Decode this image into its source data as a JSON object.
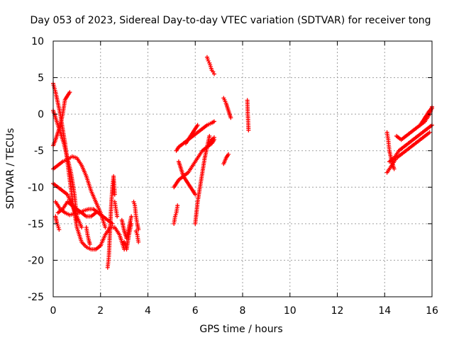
{
  "chart_data": {
    "type": "scatter",
    "title": "Day 053 of 2023, Sidereal Day-to-day VTEC variation (SDTVAR) for receiver tong",
    "xlabel": "GPS time / hours",
    "ylabel": "SDTVAR / TECUs",
    "xlim": [
      0,
      16
    ],
    "ylim": [
      -25,
      10
    ],
    "xticks": [
      "0",
      "2",
      "4",
      "6",
      "8",
      "10",
      "12",
      "14",
      "16"
    ],
    "yticks": [
      "10",
      "5",
      "0",
      "-5",
      "-10",
      "-15",
      "-20",
      "-25"
    ],
    "grid": true,
    "marker": "plus",
    "marker_color": "#ff0000",
    "segments": [
      {
        "x": [
          0.0,
          0.1,
          0.2,
          0.3,
          0.4,
          0.5
        ],
        "y": [
          4.2,
          3.0,
          1.5,
          0.0,
          -2.0,
          -4.0
        ]
      },
      {
        "x": [
          0.5,
          0.6,
          0.7,
          0.8,
          0.9,
          1.0,
          1.2,
          1.4,
          1.6,
          1.8,
          2.0
        ],
        "y": [
          -4.0,
          -6.5,
          -9.0,
          -11.5,
          -13.5,
          -15.5,
          -17.5,
          -18.2,
          -18.5,
          -18.5,
          -18.0
        ]
      },
      {
        "x": [
          2.0,
          2.2,
          2.4,
          2.6,
          2.8,
          3.0
        ],
        "y": [
          -18.0,
          -16.5,
          -15.5,
          -15.5,
          -16.5,
          -18.5
        ]
      },
      {
        "x": [
          0.0,
          0.1,
          0.2,
          0.3,
          0.4,
          0.5,
          0.6,
          0.7
        ],
        "y": [
          -4.3,
          -3.5,
          -2.5,
          -1.5,
          0.0,
          2.0,
          2.5,
          3.0
        ]
      },
      {
        "x": [
          0.0,
          0.2,
          0.4,
          0.6,
          0.8,
          1.0,
          1.2,
          1.4,
          1.6,
          1.8,
          2.0,
          2.2
        ],
        "y": [
          -7.5,
          -7.0,
          -6.5,
          -6.2,
          -5.8,
          -6.0,
          -7.0,
          -8.5,
          -10.5,
          -12.0,
          -13.5,
          -15.5
        ]
      },
      {
        "x": [
          0.0,
          0.15,
          0.3,
          0.45,
          0.6,
          0.75,
          0.9,
          1.0
        ],
        "y": [
          0.5,
          -1.0,
          -2.5,
          -4.0,
          -6.0,
          -8.0,
          -11.0,
          -14.5
        ]
      },
      {
        "x": [
          0.0,
          0.2,
          0.4,
          0.6,
          0.8,
          1.0,
          1.2
        ],
        "y": [
          -9.5,
          -10.0,
          -10.5,
          -11.0,
          -12.5,
          -14.0,
          -15.5
        ]
      },
      {
        "x": [
          0.1,
          0.3,
          0.5,
          0.7,
          0.9,
          1.1,
          1.3,
          1.5,
          1.7,
          1.9,
          2.1,
          2.3,
          2.5
        ],
        "y": [
          -12.0,
          -13.0,
          -13.5,
          -13.8,
          -13.6,
          -13.5,
          -13.2,
          -13.0,
          -13.0,
          -13.5,
          -14.0,
          -14.5,
          -15.0
        ]
      },
      {
        "x": [
          0.2,
          0.4,
          0.6,
          0.8,
          1.0,
          1.2,
          1.4,
          1.6,
          1.8
        ],
        "y": [
          -13.5,
          -13.0,
          -12.0,
          -12.5,
          -13.0,
          -13.5,
          -14.0,
          -14.0,
          -13.5
        ]
      },
      {
        "x": [
          0.1,
          0.15,
          0.2,
          0.25
        ],
        "y": [
          -14.0,
          -14.8,
          -15.3,
          -15.8
        ]
      },
      {
        "x": [
          1.4,
          1.45,
          1.5,
          1.55
        ],
        "y": [
          -15.5,
          -16.5,
          -17.2,
          -17.8
        ]
      },
      {
        "x": [
          2.3,
          2.35,
          2.4,
          2.45,
          2.5,
          2.55,
          2.6
        ],
        "y": [
          -21.0,
          -19.5,
          -16.0,
          -12.5,
          -10.0,
          -8.5,
          -11.0
        ]
      },
      {
        "x": [
          2.6,
          2.65,
          2.7
        ],
        "y": [
          -12.0,
          -13.0,
          -14.0
        ]
      },
      {
        "x": [
          2.9,
          3.0,
          3.1,
          3.2,
          3.3
        ],
        "y": [
          -14.5,
          -16.0,
          -17.0,
          -15.5,
          -14.0
        ]
      },
      {
        "x": [
          3.0,
          3.1,
          3.2,
          3.3
        ],
        "y": [
          -17.5,
          -18.5,
          -16.5,
          -15.0
        ]
      },
      {
        "x": [
          3.4,
          3.45,
          3.5,
          3.55,
          3.6
        ],
        "y": [
          -12.0,
          -12.5,
          -14.0,
          -15.0,
          -15.8
        ]
      },
      {
        "x": [
          3.5,
          3.55,
          3.6
        ],
        "y": [
          -16.0,
          -16.5,
          -17.5
        ]
      },
      {
        "x": [
          5.1,
          5.2,
          5.3,
          5.5,
          5.7,
          5.9,
          6.1,
          6.3,
          6.5,
          6.7,
          6.8
        ],
        "y": [
          -10.0,
          -9.5,
          -9.0,
          -8.5,
          -8.0,
          -7.0,
          -6.0,
          -5.0,
          -4.5,
          -4.0,
          -3.5
        ]
      },
      {
        "x": [
          5.2,
          5.3,
          5.5,
          5.7,
          5.9,
          6.1,
          6.3,
          6.5,
          6.7,
          6.8
        ],
        "y": [
          -5.0,
          -4.5,
          -4.0,
          -3.5,
          -3.0,
          -2.5,
          -2.0,
          -1.5,
          -1.2,
          -1.0
        ]
      },
      {
        "x": [
          5.3,
          5.4,
          5.5,
          5.6,
          5.7,
          5.8,
          5.9,
          6.0
        ],
        "y": [
          -6.5,
          -7.5,
          -8.5,
          -9.0,
          -9.5,
          -10.0,
          -10.5,
          -11.0
        ]
      },
      {
        "x": [
          5.1,
          5.15,
          5.2,
          5.25
        ],
        "y": [
          -15.0,
          -14.0,
          -13.5,
          -12.5
        ]
      },
      {
        "x": [
          5.6,
          5.7,
          5.8,
          5.9,
          6.0,
          6.1
        ],
        "y": [
          -4.0,
          -3.5,
          -3.0,
          -2.5,
          -2.0,
          -1.5
        ]
      },
      {
        "x": [
          6.0,
          6.1,
          6.2,
          6.3,
          6.4,
          6.5,
          6.6
        ],
        "y": [
          -15.0,
          -12.0,
          -10.0,
          -8.0,
          -6.0,
          -4.5,
          -3.0
        ]
      },
      {
        "x": [
          6.5,
          6.55,
          6.6,
          6.65,
          6.7,
          6.75,
          6.8
        ],
        "y": [
          7.8,
          7.3,
          7.0,
          6.5,
          6.0,
          5.8,
          5.5
        ]
      },
      {
        "x": [
          6.6,
          6.7,
          6.8
        ],
        "y": [
          -4.0,
          -3.5,
          -3.2
        ]
      },
      {
        "x": [
          7.2,
          7.3,
          7.4,
          7.5
        ],
        "y": [
          2.2,
          1.5,
          0.5,
          -0.5
        ]
      },
      {
        "x": [
          7.2,
          7.3,
          7.4
        ],
        "y": [
          -6.8,
          -6.0,
          -5.5
        ]
      },
      {
        "x": [
          8.2,
          8.22,
          8.25
        ],
        "y": [
          1.9,
          0.0,
          -2.2
        ]
      },
      {
        "x": [
          14.1,
          14.3,
          14.5,
          14.7,
          14.9,
          15.1,
          15.3,
          15.5,
          15.7,
          15.9
        ],
        "y": [
          -8.0,
          -7.0,
          -6.0,
          -5.5,
          -5.0,
          -4.5,
          -4.0,
          -3.5,
          -3.0,
          -2.5
        ]
      },
      {
        "x": [
          14.2,
          14.4,
          14.6,
          14.8,
          15.0,
          15.2,
          15.4,
          15.6,
          15.8,
          16.0
        ],
        "y": [
          -6.5,
          -6.0,
          -5.0,
          -4.5,
          -4.0,
          -3.5,
          -3.0,
          -2.5,
          -2.0,
          -1.5
        ]
      },
      {
        "x": [
          14.5,
          14.7,
          14.9,
          15.1,
          15.3,
          15.5,
          15.7,
          15.9,
          16.0
        ],
        "y": [
          -3.0,
          -3.5,
          -3.0,
          -2.5,
          -2.0,
          -1.5,
          -1.0,
          0.0,
          1.0
        ]
      },
      {
        "x": [
          14.1,
          14.15,
          14.2,
          14.3,
          14.4
        ],
        "y": [
          -2.5,
          -3.5,
          -5.0,
          -6.5,
          -7.5
        ]
      },
      {
        "x": [
          15.5,
          15.6,
          15.7,
          15.8,
          15.9,
          16.0
        ],
        "y": [
          -1.5,
          -1.0,
          -0.5,
          0.0,
          0.5,
          0.8
        ]
      }
    ]
  }
}
